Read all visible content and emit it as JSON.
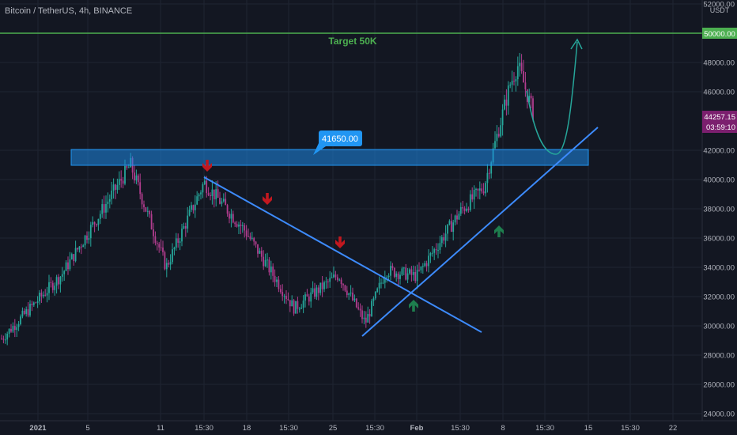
{
  "header": {
    "symbol_title": "Bitcoin / TetherUS, 4h, BINANCE"
  },
  "price_axis": {
    "currency": "USDT",
    "ticks": [
      "52000.00",
      "50000.00",
      "48000.00",
      "46000.00",
      "42000.00",
      "40000.00",
      "38000.00",
      "36000.00",
      "34000.00",
      "32000.00",
      "30000.00",
      "28000.00",
      "26000.00",
      "24000.00"
    ],
    "current_price": "44257.15",
    "countdown": "03:59:10",
    "target_price_label": "50000.00"
  },
  "time_axis": {
    "labels": [
      "2021",
      "5",
      "11",
      "15:30",
      "18",
      "15:30",
      "25",
      "15:30",
      "Feb",
      "15:30",
      "8",
      "15:30",
      "15",
      "15:30",
      "22"
    ]
  },
  "annotations": {
    "target_text": "Target 50K",
    "zone_callout": "41650.00"
  },
  "colors": {
    "background": "#131722",
    "grid": "#1f2432",
    "candle_up": "#26a69a",
    "candle_down": "#b13d8e",
    "target_line": "#4caf50",
    "trendline": "#3d8bfd",
    "zone_fill": "#1e88e5",
    "arrow_down": "#c2181f",
    "arrow_up": "#1e7e4e",
    "projection": "#26a69a",
    "price_badge": "#7b1f6e"
  },
  "icons": {
    "sell_markers": "arrow-down-icon",
    "buy_markers": "arrow-up-icon",
    "projection_end": "arrow-head-icon"
  },
  "chart_data": {
    "type": "candlestick",
    "title": "Bitcoin / TetherUS, 4h, BINANCE",
    "ylabel": "USDT",
    "ylim": [
      24000,
      52000
    ],
    "y_ticks": [
      24000,
      26000,
      28000,
      30000,
      32000,
      34000,
      36000,
      38000,
      40000,
      42000,
      46000,
      48000,
      50000,
      52000
    ],
    "x_tick_labels": [
      "2021",
      "5",
      "11",
      "15:30",
      "18",
      "15:30",
      "25",
      "15:30",
      "Feb",
      "15:30",
      "8",
      "15:30",
      "15",
      "15:30",
      "22"
    ],
    "series": [
      {
        "values": [
          {
            "t": "2021",
            "close": 29000
          },
          {
            "t": "5",
            "close": 33500
          },
          {
            "t": "8",
            "close": 41000
          },
          {
            "t": "11",
            "close": 34000
          },
          {
            "t": "15:30",
            "close": 39800
          },
          {
            "t": "18",
            "close": 36500
          },
          {
            "t": "21",
            "close": 31200
          },
          {
            "t": "25",
            "close": 33500
          },
          {
            "t": "27",
            "close": 30200
          },
          {
            "t": "15:30",
            "close": 33800
          },
          {
            "t": "Feb",
            "close": 33400
          },
          {
            "t": "15:30",
            "close": 37800
          },
          {
            "t": "6",
            "close": 39500
          },
          {
            "t": "8",
            "close": 46500
          },
          {
            "t": "9",
            "close": 47800
          },
          {
            "t": "10",
            "close": 44257.15
          }
        ]
      }
    ],
    "horizontal_lines": [
      {
        "label": "Target 50K",
        "value": 50000
      }
    ],
    "zones": [
      {
        "label": "41650.00",
        "from": 41000,
        "to": 42200
      }
    ],
    "last_price": 44257.15,
    "grid": true
  }
}
